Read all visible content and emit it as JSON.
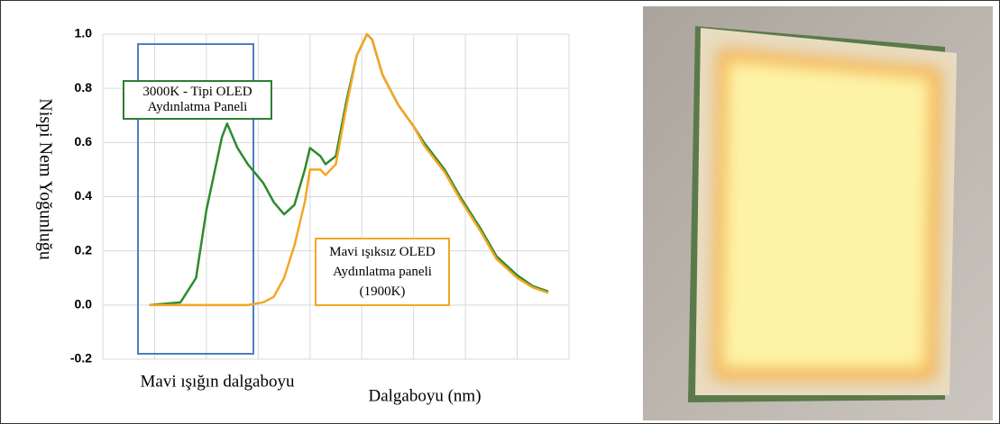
{
  "chart_data": {
    "type": "line",
    "ylabel": "Nispi Nem Yoğunluğu",
    "xlabel": "Dalgaboyu (nm)",
    "annotations": [
      "Mavi ışığın dalgaboyu"
    ],
    "xlim": [
      0,
      9
    ],
    "xticks": [
      0,
      1,
      2,
      3,
      4,
      5,
      6,
      7,
      8,
      9
    ],
    "ylim": [
      -0.2,
      1.0
    ],
    "yticks": [
      {
        "value": -0.2,
        "label": "-0.2"
      },
      {
        "value": 0,
        "label": "0.0"
      },
      {
        "value": 0.2,
        "label": "0.2"
      },
      {
        "value": 0.4,
        "label": "0.4"
      },
      {
        "value": 0.6,
        "label": "0.6"
      },
      {
        "value": 0.8,
        "label": "0.8"
      },
      {
        "value": 1.0,
        "label": "1.0"
      }
    ],
    "grid": true,
    "x": [
      0.9,
      1.5,
      1.8,
      2.0,
      2.3,
      2.4,
      2.6,
      2.8,
      3.1,
      3.3,
      3.5,
      3.7,
      3.9,
      4.0,
      4.2,
      4.3,
      4.5,
      4.7,
      4.9,
      5.1,
      5.2,
      5.4,
      5.7,
      6.0,
      6.2,
      6.6,
      6.9,
      7.3,
      7.6,
      8.0,
      8.3,
      8.6
    ],
    "series": [
      {
        "name": "3000K - Tipi OLED Aydınlatma Paneli",
        "color": "#2e8b2e",
        "values": [
          0,
          0.01,
          0.1,
          0.35,
          0.62,
          0.67,
          0.58,
          0.52,
          0.45,
          0.38,
          0.335,
          0.37,
          0.5,
          0.58,
          0.55,
          0.52,
          0.55,
          0.75,
          0.92,
          1.0,
          0.98,
          0.85,
          0.74,
          0.66,
          0.6,
          0.5,
          0.4,
          0.28,
          0.18,
          0.11,
          0.07,
          0.05
        ]
      },
      {
        "name": "Mavi ışıksız OLED Aydınlatma paneli (1900K)",
        "color": "#f5a623",
        "values": [
          0,
          0,
          0,
          0,
          0,
          0,
          0,
          0,
          0.01,
          0.03,
          0.1,
          0.22,
          0.38,
          0.5,
          0.5,
          0.48,
          0.52,
          0.73,
          0.92,
          1.0,
          0.98,
          0.85,
          0.74,
          0.66,
          0.59,
          0.49,
          0.39,
          0.27,
          0.17,
          0.1,
          0.065,
          0.045
        ]
      }
    ]
  }
}
